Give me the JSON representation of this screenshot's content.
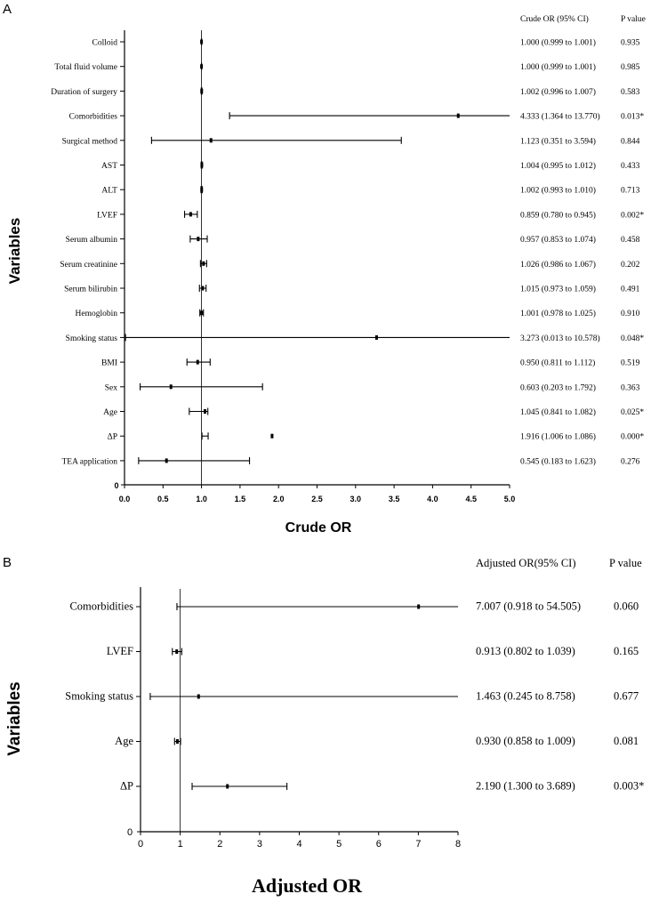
{
  "chart_data": [
    {
      "type": "forest",
      "panel": "A",
      "title": "",
      "xlabel": "Crude OR",
      "ylabel": "Variables",
      "xlim": [
        0,
        5
      ],
      "xticks": [
        "0.0",
        "0.5",
        "1.0",
        "1.5",
        "2.0",
        "2.5",
        "3.0",
        "3.5",
        "4.0",
        "4.5",
        "5.0"
      ],
      "yticks": [
        "0"
      ],
      "reference_line": 1,
      "col_headers": {
        "or": "Crude OR (95% CI)",
        "p": "P value"
      },
      "rows": [
        {
          "label": "Colloid",
          "or": 1.0,
          "lo": 0.999,
          "hi": 1.001,
          "ci_text": "1.000 (0.999 to 1.001)",
          "p": "0.935"
        },
        {
          "label": "Total fluid volume",
          "or": 1.0,
          "lo": 0.999,
          "hi": 1.001,
          "ci_text": "1.000 (0.999 to 1.001)",
          "p": "0.985"
        },
        {
          "label": "Duration of surgery",
          "or": 1.002,
          "lo": 0.996,
          "hi": 1.007,
          "ci_text": "1.002 (0.996 to 1.007)",
          "p": "0.583"
        },
        {
          "label": "Comorbidities",
          "or": 4.333,
          "lo": 1.364,
          "hi": 13.77,
          "ci_text": "4.333 (1.364 to 13.770)",
          "p": "0.013*"
        },
        {
          "label": "Surgical method",
          "or": 1.123,
          "lo": 0.351,
          "hi": 3.594,
          "ci_text": "1.123 (0.351 to 3.594)",
          "p": "0.844"
        },
        {
          "label": "AST",
          "or": 1.004,
          "lo": 0.995,
          "hi": 1.012,
          "ci_text": "1.004 (0.995 to 1.012)",
          "p": "0.433"
        },
        {
          "label": "ALT",
          "or": 1.002,
          "lo": 0.993,
          "hi": 1.01,
          "ci_text": "1.002 (0.993 to 1.010)",
          "p": "0.713"
        },
        {
          "label": "LVEF",
          "or": 0.859,
          "lo": 0.78,
          "hi": 0.945,
          "ci_text": "0.859 (0.780 to 0.945)",
          "p": "0.002*"
        },
        {
          "label": "Serum albumin",
          "or": 0.957,
          "lo": 0.853,
          "hi": 1.074,
          "ci_text": "0.957 (0.853 to 1.074)",
          "p": "0.458"
        },
        {
          "label": "Serum creatinine",
          "or": 1.026,
          "lo": 0.986,
          "hi": 1.067,
          "ci_text": "1.026 (0.986 to 1.067)",
          "p": "0.202"
        },
        {
          "label": "Serum bilirubin",
          "or": 1.015,
          "lo": 0.973,
          "hi": 1.059,
          "ci_text": "1.015 (0.973 to 1.059)",
          "p": "0.491"
        },
        {
          "label": "Hemoglobin",
          "or": 1.001,
          "lo": 0.978,
          "hi": 1.025,
          "ci_text": "1.001 (0.978 to 1.025)",
          "p": "0.910"
        },
        {
          "label": "Smoking status",
          "or": 3.273,
          "lo": 0.013,
          "hi": 10.578,
          "ci_text": "3.273 (0.013 to 10.578)",
          "p": "0.048*"
        },
        {
          "label": "BMI",
          "or": 0.95,
          "lo": 0.811,
          "hi": 1.112,
          "ci_text": "0.950 (0.811 to 1.112)",
          "p": "0.519"
        },
        {
          "label": "Sex",
          "or": 0.603,
          "lo": 0.203,
          "hi": 1.792,
          "ci_text": "0.603 (0.203 to 1.792)",
          "p": "0.363"
        },
        {
          "label": "Age",
          "or": 1.045,
          "lo": 0.841,
          "hi": 1.082,
          "ci_text": "1.045 (0.841 to 1.082)",
          "p": "0.025*"
        },
        {
          "label": "ΔP",
          "or": 1.916,
          "lo": 1.006,
          "hi": 1.086,
          "ci_text": "1.916 (1.006 to 1.086)",
          "p": "0.000*"
        },
        {
          "label": "TEA application",
          "or": 0.545,
          "lo": 0.183,
          "hi": 1.623,
          "ci_text": "0.545 (0.183 to 1.623)",
          "p": "0.276"
        }
      ]
    },
    {
      "type": "forest",
      "panel": "B",
      "title": "",
      "xlabel": "Adjusted OR",
      "ylabel": "Variables",
      "xlim": [
        0,
        8
      ],
      "xticks": [
        "0",
        "1",
        "2",
        "3",
        "4",
        "5",
        "6",
        "7",
        "8"
      ],
      "yticks": [
        "0"
      ],
      "reference_line": 1,
      "col_headers": {
        "or": "Adjusted OR(95% CI)",
        "p": "P value"
      },
      "rows": [
        {
          "label": "Comorbidities",
          "or": 7.007,
          "lo": 0.918,
          "hi": 54.505,
          "ci_text": "7.007 (0.918 to 54.505)",
          "p": "0.060"
        },
        {
          "label": "LVEF",
          "or": 0.913,
          "lo": 0.802,
          "hi": 1.039,
          "ci_text": "0.913 (0.802 to 1.039)",
          "p": "0.165"
        },
        {
          "label": "Smoking status",
          "or": 1.463,
          "lo": 0.245,
          "hi": 8.758,
          "ci_text": "1.463 (0.245 to 8.758)",
          "p": "0.677"
        },
        {
          "label": "Age",
          "or": 0.93,
          "lo": 0.858,
          "hi": 1.009,
          "ci_text": "0.930 (0.858 to 1.009)",
          "p": "0.081"
        },
        {
          "label": "ΔP",
          "or": 2.19,
          "lo": 1.3,
          "hi": 3.689,
          "ci_text": "2.190 (1.300 to 3.689)",
          "p": "0.003*"
        }
      ]
    }
  ]
}
